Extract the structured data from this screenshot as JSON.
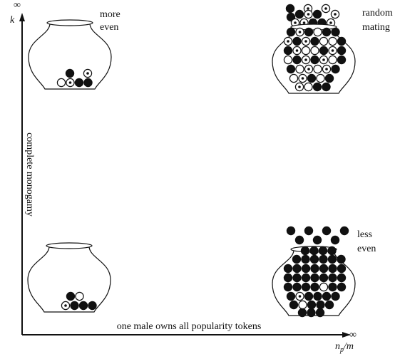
{
  "axes": {
    "y_infinity": "∞",
    "y_label": "k",
    "y_title": "complete monogamy",
    "x_infinity": "∞",
    "x_title": "one male owns all popularity tokens",
    "x_label": {
      "main": "n",
      "subscript": "p",
      "rest": "/m"
    }
  },
  "labels": {
    "top_left": [
      "more",
      "even"
    ],
    "top_right": [
      "random",
      "mating"
    ],
    "bottom_right": [
      "less",
      "even"
    ]
  }
}
